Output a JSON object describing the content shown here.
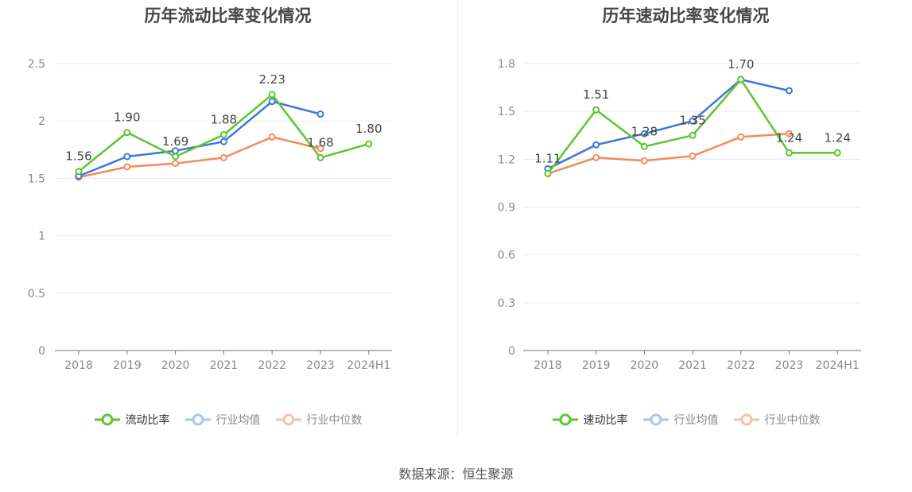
{
  "source": "数据来源：恒生聚源",
  "chart_data": [
    {
      "type": "line",
      "title": "历年流动比率变化情况",
      "categories": [
        "2018",
        "2019",
        "2020",
        "2021",
        "2022",
        "2023",
        "2024H1"
      ],
      "ylim": [
        0,
        2.5
      ],
      "yticks": [
        "0",
        "0.5",
        "1",
        "1.5",
        "2",
        "2.5"
      ],
      "grid": true,
      "legend_position": "bottom",
      "series": [
        {
          "name": "流动比率",
          "color": "#5ec52e",
          "values": [
            1.56,
            1.9,
            1.69,
            1.88,
            2.23,
            1.68,
            1.8
          ],
          "labels": [
            "1.56",
            "1.90",
            "1.69",
            "1.88",
            "2.23",
            "1.68",
            "1.80"
          ]
        },
        {
          "name": "行业均值",
          "color": "#3c78d8",
          "values": [
            1.52,
            1.69,
            1.74,
            1.82,
            2.17,
            2.06,
            null
          ]
        },
        {
          "name": "行业中位数",
          "color": "#f28b58",
          "values": [
            1.51,
            1.6,
            1.63,
            1.68,
            1.86,
            1.76,
            null
          ]
        }
      ]
    },
    {
      "type": "line",
      "title": "历年速动比率变化情况",
      "categories": [
        "2018",
        "2019",
        "2020",
        "2021",
        "2022",
        "2023",
        "2024H1"
      ],
      "ylim": [
        0,
        1.8
      ],
      "yticks": [
        "0",
        "0.3",
        "0.6",
        "0.9",
        "1.2",
        "1.5",
        "1.8"
      ],
      "grid": true,
      "legend_position": "bottom",
      "series": [
        {
          "name": "速动比率",
          "color": "#5ec52e",
          "values": [
            1.11,
            1.51,
            1.28,
            1.35,
            1.7,
            1.24,
            1.24
          ],
          "labels": [
            "1.11",
            "1.51",
            "1.28",
            "1.35",
            "1.70",
            "1.24",
            "1.24"
          ]
        },
        {
          "name": "行业均值",
          "color": "#3c78d8",
          "values": [
            1.14,
            1.29,
            1.36,
            1.44,
            1.7,
            1.63,
            null
          ]
        },
        {
          "name": "行业中位数",
          "color": "#f28b58",
          "values": [
            1.11,
            1.21,
            1.19,
            1.22,
            1.34,
            1.36,
            null
          ]
        }
      ]
    }
  ]
}
